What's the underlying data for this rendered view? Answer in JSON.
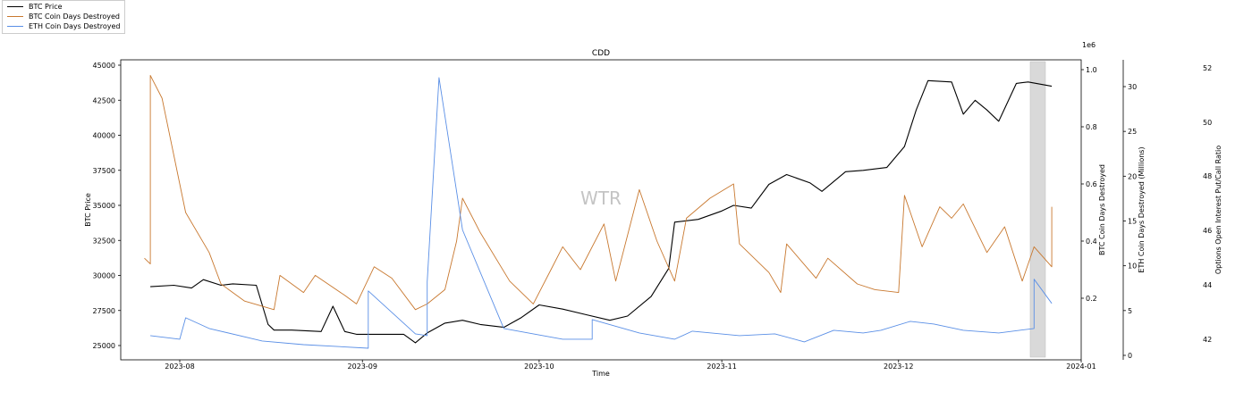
{
  "chart_data": {
    "type": "line",
    "title": "CDD",
    "watermark": "WTR",
    "xlabel": "Time",
    "x_ticks": [
      "2023-08",
      "2023-09",
      "2023-10",
      "2023-11",
      "2023-12",
      "2024-01"
    ],
    "axes": {
      "btc_price": {
        "label": "BTC Price",
        "ticks": [
          "25000",
          "27500",
          "30000",
          "32500",
          "35000",
          "37500",
          "40000",
          "42500",
          "45000"
        ],
        "ylim": [
          24000,
          45400
        ]
      },
      "btc_cdd": {
        "label": "BTC Coin Days Destroyed",
        "offset_text": "1e6",
        "ticks": [
          "0.2",
          "0.4",
          "0.6",
          "0.8",
          "1.0"
        ],
        "ylim": [
          0.1,
          1.03
        ]
      },
      "eth_cdd": {
        "label": "ETH Coin Days Destroyed (Millions)",
        "ticks": [
          "0",
          "5",
          "10",
          "15",
          "20",
          "25",
          "30"
        ],
        "ylim": [
          0,
          33
        ]
      },
      "put_call": {
        "label": "Options Open Interest Put/Call Ratio",
        "ticks": [
          "42",
          "44",
          "46",
          "48",
          "50",
          "52"
        ]
      }
    },
    "legend": [
      {
        "label": "BTC Price",
        "color": "#000000"
      },
      {
        "label": "BTC Coin Days Destroyed",
        "color": "#c8782f"
      },
      {
        "label": "ETH Coin Days Destroyed",
        "color": "#5a8fe6"
      }
    ],
    "highlight_region": {
      "from": "2023-12-25",
      "to": "2023-12-28",
      "color": "#d9d9d9"
    },
    "series": [
      {
        "name": "BTC Price",
        "color": "#000000",
        "x": [
          "2023-07-27",
          "2023-07-31",
          "2023-08-03",
          "2023-08-05",
          "2023-08-08",
          "2023-08-10",
          "2023-08-14",
          "2023-08-16",
          "2023-08-17",
          "2023-08-20",
          "2023-08-25",
          "2023-08-27",
          "2023-08-29",
          "2023-08-31",
          "2023-09-05",
          "2023-09-08",
          "2023-09-10",
          "2023-09-12",
          "2023-09-15",
          "2023-09-18",
          "2023-09-21",
          "2023-09-25",
          "2023-09-28",
          "2023-10-01",
          "2023-10-05",
          "2023-10-09",
          "2023-10-13",
          "2023-10-16",
          "2023-10-20",
          "2023-10-23",
          "2023-10-24",
          "2023-10-28",
          "2023-11-01",
          "2023-11-03",
          "2023-11-06",
          "2023-11-09",
          "2023-11-12",
          "2023-11-16",
          "2023-11-18",
          "2023-11-22",
          "2023-11-25",
          "2023-11-29",
          "2023-12-02",
          "2023-12-04",
          "2023-12-06",
          "2023-12-10",
          "2023-12-12",
          "2023-12-14",
          "2023-12-16",
          "2023-12-18",
          "2023-12-21",
          "2023-12-23",
          "2023-12-27"
        ],
        "values": [
          29200,
          29300,
          29100,
          29700,
          29300,
          29400,
          29300,
          26500,
          26100,
          26100,
          26000,
          27800,
          26000,
          25800,
          25800,
          25800,
          25200,
          25900,
          26600,
          26800,
          26500,
          26300,
          27000,
          27900,
          27600,
          27200,
          26800,
          27100,
          28500,
          30500,
          33800,
          34000,
          34600,
          35000,
          34800,
          36500,
          37200,
          36600,
          36000,
          37400,
          37500,
          37700,
          39200,
          41800,
          43900,
          43800,
          41500,
          42500,
          41800,
          41000,
          43700,
          43800,
          43500
        ]
      },
      {
        "name": "BTC Coin Days Destroyed",
        "color": "#c8782f",
        "x": [
          "2023-07-26",
          "2023-07-27",
          "2023-07-27",
          "2023-07-29",
          "2023-08-02",
          "2023-08-06",
          "2023-08-08",
          "2023-08-12",
          "2023-08-17",
          "2023-08-18",
          "2023-08-22",
          "2023-08-24",
          "2023-08-29",
          "2023-08-31",
          "2023-09-03",
          "2023-09-06",
          "2023-09-10",
          "2023-09-12",
          "2023-09-15",
          "2023-09-17",
          "2023-09-18",
          "2023-09-21",
          "2023-09-26",
          "2023-09-30",
          "2023-10-03",
          "2023-10-05",
          "2023-10-08",
          "2023-10-12",
          "2023-10-14",
          "2023-10-18",
          "2023-10-21",
          "2023-10-24",
          "2023-10-26",
          "2023-10-30",
          "2023-11-03",
          "2023-11-04",
          "2023-11-09",
          "2023-11-11",
          "2023-11-12",
          "2023-11-17",
          "2023-11-19",
          "2023-11-24",
          "2023-11-27",
          "2023-12-01",
          "2023-12-02",
          "2023-12-05",
          "2023-12-08",
          "2023-12-10",
          "2023-12-12",
          "2023-12-16",
          "2023-12-19",
          "2023-12-22",
          "2023-12-24",
          "2023-12-27",
          "2023-12-27"
        ],
        "values": [
          0.34,
          0.32,
          0.98,
          0.9,
          0.5,
          0.36,
          0.25,
          0.19,
          0.16,
          0.28,
          0.22,
          0.28,
          0.21,
          0.18,
          0.31,
          0.27,
          0.16,
          0.18,
          0.23,
          0.4,
          0.55,
          0.43,
          0.26,
          0.18,
          0.3,
          0.38,
          0.3,
          0.46,
          0.26,
          0.58,
          0.4,
          0.26,
          0.48,
          0.55,
          0.6,
          0.39,
          0.29,
          0.22,
          0.39,
          0.27,
          0.34,
          0.25,
          0.23,
          0.22,
          0.56,
          0.38,
          0.52,
          0.48,
          0.53,
          0.36,
          0.45,
          0.26,
          0.38,
          0.31,
          0.52
        ]
      },
      {
        "name": "ETH Coin Days Destroyed",
        "color": "#5a8fe6",
        "x": [
          "2023-07-27",
          "2023-08-01",
          "2023-08-02",
          "2023-08-06",
          "2023-08-15",
          "2023-08-22",
          "2023-09-02",
          "2023-09-02",
          "2023-09-10",
          "2023-09-12",
          "2023-09-12",
          "2023-09-14",
          "2023-09-18",
          "2023-09-25",
          "2023-10-05",
          "2023-10-10",
          "2023-10-10",
          "2023-10-18",
          "2023-10-24",
          "2023-10-27",
          "2023-11-04",
          "2023-11-10",
          "2023-11-15",
          "2023-11-20",
          "2023-11-25",
          "2023-11-28",
          "2023-12-03",
          "2023-12-07",
          "2023-12-12",
          "2023-12-18",
          "2023-12-24",
          "2023-12-24",
          "2023-12-27"
        ],
        "values": [
          2.2,
          1.8,
          4.2,
          3.0,
          1.6,
          1.2,
          0.8,
          7.2,
          2.4,
          2.2,
          8.2,
          31.0,
          14.0,
          3.0,
          1.8,
          1.8,
          4.0,
          2.5,
          1.8,
          2.7,
          2.2,
          2.4,
          1.5,
          2.8,
          2.5,
          2.8,
          3.8,
          3.5,
          2.8,
          2.5,
          3.0,
          8.5,
          5.8
        ]
      }
    ]
  }
}
